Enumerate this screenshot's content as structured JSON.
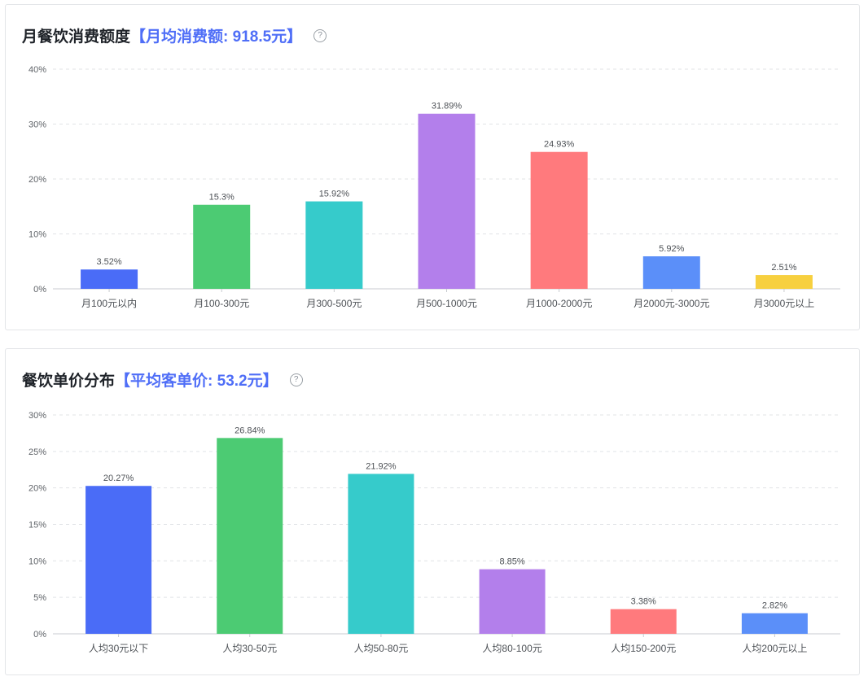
{
  "charts": [
    {
      "title_main": "月餐饮消费额度",
      "title_highlight": "【月均消费额: 918.5元】",
      "help_icon": "question-circle-icon"
    },
    {
      "title_main": "餐饮单价分布",
      "title_highlight": "【平均客单价: 53.2元】",
      "help_icon": "question-circle-icon"
    }
  ],
  "chart_data": [
    {
      "type": "bar",
      "title": "月餐饮消费额度【月均消费额: 918.5元】",
      "categories": [
        "月100元以内",
        "月100-300元",
        "月300-500元",
        "月500-1000元",
        "月1000-2000元",
        "月2000元-3000元",
        "月3000元以上"
      ],
      "values": [
        3.52,
        15.3,
        15.92,
        31.89,
        24.93,
        5.92,
        2.51
      ],
      "value_labels": [
        "3.52%",
        "15.3%",
        "15.92%",
        "31.89%",
        "24.93%",
        "5.92%",
        "2.51%"
      ],
      "colors": [
        "#4a6cf7",
        "#4ccb73",
        "#36cbcb",
        "#b37feb",
        "#ff7a7d",
        "#5b8ff9",
        "#f7d03f"
      ],
      "yticks": [
        0,
        10,
        20,
        30,
        40
      ],
      "ytick_labels": [
        "0%",
        "10%",
        "20%",
        "30%",
        "40%"
      ],
      "ylim": [
        0,
        40
      ],
      "grid": true
    },
    {
      "type": "bar",
      "title": "餐饮单价分布【平均客单价: 53.2元】",
      "categories": [
        "人均30元以下",
        "人均30-50元",
        "人均50-80元",
        "人均80-100元",
        "人均150-200元",
        "人均200元以上"
      ],
      "values": [
        20.27,
        26.84,
        21.92,
        8.85,
        3.38,
        2.82
      ],
      "value_labels": [
        "20.27%",
        "26.84%",
        "21.92%",
        "8.85%",
        "3.38%",
        "2.82%"
      ],
      "colors": [
        "#4a6cf7",
        "#4ccb73",
        "#36cbcb",
        "#b37feb",
        "#ff7a7d",
        "#5b8ff9"
      ],
      "yticks": [
        0,
        5,
        10,
        15,
        20,
        25,
        30
      ],
      "ytick_labels": [
        "0%",
        "5%",
        "10%",
        "15%",
        "20%",
        "25%",
        "30%"
      ],
      "ylim": [
        0,
        30
      ],
      "grid": true
    }
  ]
}
